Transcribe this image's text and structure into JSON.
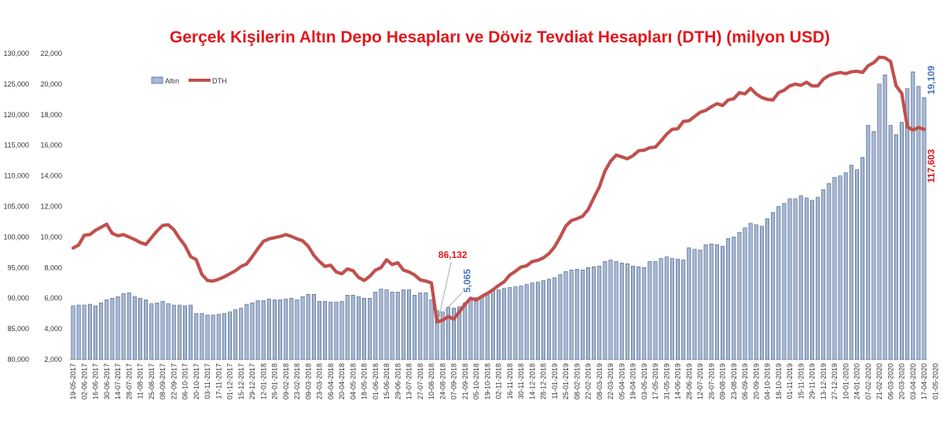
{
  "chart_data": {
    "type": "bar",
    "title": "Gerçek Kişilerin Altın Depo Hesapları ve Döviz Tevdiat Hesapları (DTH) (milyon USD)",
    "title_color": "#e3171c",
    "xlabel": "",
    "ylabel": "",
    "y_left": {
      "ylim": [
        2000,
        22000
      ],
      "ticks": [
        "2,000",
        "4,000",
        "6,000",
        "8,000",
        "10,000",
        "12,000",
        "14,000",
        "16,000",
        "18,000",
        "20,000",
        "22,000"
      ]
    },
    "y_right": {
      "ylim": [
        80000,
        130000
      ],
      "ticks": [
        "80,000",
        "85,000",
        "90,000",
        "95,000",
        "100,000",
        "105,000",
        "110,000",
        "115,000",
        "120,000",
        "125,000",
        "130,000"
      ]
    },
    "grid": false,
    "legend_position": "top-left",
    "x_labels": [
      "19-05-2017",
      "02-06-2017",
      "16-06-2017",
      "30-06-2017",
      "14-07-2017",
      "28-07-2017",
      "11-08-2017",
      "25-08-2017",
      "08-09-2017",
      "22-09-2017",
      "06-10-2017",
      "20-10-2017",
      "03-11-2017",
      "17-11-2017",
      "01-12-2017",
      "15-12-2017",
      "29-12-2017",
      "12-01-2018",
      "26-01-2018",
      "09-02-2018",
      "23-02-2018",
      "09-03-2018",
      "23-03-2018",
      "06-04-2018",
      "20-04-2018",
      "04-05-2018",
      "18-05-2018",
      "01-06-2018",
      "15-06-2018",
      "29-06-2018",
      "13-07-2018",
      "27-07-2018",
      "10-08-2018",
      "24-08-2018",
      "07-09-2018",
      "21-09-2018",
      "05-10-2018",
      "19-10-2018",
      "02-11-2018",
      "16-11-2018",
      "30-11-2018",
      "14-12-2018",
      "28-12-2018",
      "11-01-2019",
      "25-01-2019",
      "08-02-2019",
      "22-02-2019",
      "08-03-2019",
      "22-03-2019",
      "05-04-2019",
      "19-04-2019",
      "03-05-2019",
      "17-05-2019",
      "31-05-2019",
      "14-06-2019",
      "28-06-2019",
      "12-07-2019",
      "26-07-2019",
      "09-08-2019",
      "23-08-2019",
      "06-09-2019",
      "20-09-2019",
      "04-10-2019",
      "18-10-2019",
      "01-11-2019",
      "15-11-2019",
      "29-11-2019",
      "13-12-2019",
      "27-12-2019",
      "10-01-2020",
      "24-01-2020",
      "07-02-2020",
      "21-02-2020",
      "06-03-2020",
      "20-03-2020",
      "03-04-2020",
      "17-04-2020",
      "01-05-2020"
    ],
    "series": [
      {
        "name": "Altın",
        "type": "bar",
        "axis": "left",
        "color": "#a5b9d6",
        "edge_color": "#2f4266",
        "values": [
          5500,
          5550,
          5550,
          5600,
          5500,
          5700,
          5900,
          6000,
          6100,
          6300,
          6350,
          6100,
          6000,
          5900,
          5650,
          5700,
          5800,
          5650,
          5550,
          5550,
          5500,
          5550,
          5000,
          5000,
          4900,
          4900,
          4950,
          5000,
          5100,
          5250,
          5350,
          5600,
          5700,
          5850,
          5850,
          5950,
          5900,
          5900,
          5950,
          6000,
          5900,
          6100,
          6250,
          6250,
          5800,
          5800,
          5750,
          5750,
          5800,
          6200,
          6200,
          6100,
          6000,
          6000,
          6400,
          6600,
          6550,
          6400,
          6400,
          6550,
          6550,
          6200,
          6350,
          6350,
          5900,
          5200,
          5100,
          5400,
          5350,
          5450,
          5700,
          5900,
          6050,
          6100,
          6300,
          6500,
          6550,
          6650,
          6700,
          6750,
          6800,
          6900,
          7000,
          7050,
          7150,
          7250,
          7350,
          7550,
          7750,
          7850,
          7900,
          7850,
          8000,
          8050,
          8100,
          8400,
          8500,
          8400,
          8300,
          8250,
          8100,
          8050,
          8000,
          8400,
          8400,
          8600,
          8700,
          8600,
          8550,
          8500,
          9300,
          9200,
          9150,
          9500,
          9550,
          9500,
          9400,
          9900,
          10000,
          10300,
          10600,
          10900,
          10800,
          10700,
          11200,
          11600,
          12000,
          12200,
          12500,
          12500,
          12700,
          12550,
          12400,
          12600,
          13100,
          13500,
          13900,
          14000,
          14200,
          14700,
          14400,
          15200,
          17300,
          16900,
          20000,
          20600,
          17300,
          16700,
          17500,
          19700,
          20800,
          19850,
          19109
        ]
      },
      {
        "name": "DTH",
        "type": "line",
        "axis": "right",
        "color": "#c0504d",
        "values": [
          98200,
          98700,
          100300,
          100400,
          101100,
          101600,
          102100,
          100600,
          100200,
          100400,
          100000,
          99600,
          99100,
          98800,
          99900,
          101000,
          101900,
          102000,
          101200,
          99800,
          98600,
          96800,
          96300,
          93900,
          92900,
          92800,
          93100,
          93500,
          94000,
          94500,
          95200,
          95600,
          96800,
          98100,
          99300,
          99700,
          99900,
          100100,
          100400,
          100100,
          99700,
          99400,
          98500,
          97000,
          96000,
          95200,
          95400,
          94300,
          94000,
          94800,
          94500,
          93400,
          92900,
          93600,
          94600,
          95000,
          96300,
          95500,
          95800,
          94600,
          94300,
          93800,
          93000,
          92800,
          92500,
          86132,
          86400,
          87000,
          86600,
          87800,
          89000,
          90000,
          89700,
          90300,
          90800,
          91400,
          92100,
          92700,
          93800,
          94400,
          95100,
          95300,
          96000,
          96200,
          96600,
          97300,
          98400,
          100000,
          101800,
          102700,
          103000,
          103400,
          104500,
          106400,
          108200,
          110800,
          112400,
          113400,
          113100,
          112800,
          113300,
          114100,
          114200,
          114600,
          114700,
          115700,
          116800,
          117600,
          117700,
          118900,
          119000,
          119700,
          120400,
          120700,
          121300,
          121800,
          121500,
          122400,
          122600,
          123600,
          123400,
          124300,
          123400,
          122800,
          122500,
          122400,
          123600,
          124000,
          124700,
          125000,
          124800,
          125300,
          124700,
          124700,
          125800,
          126400,
          126700,
          126900,
          126700,
          127000,
          127100,
          126900,
          128000,
          128500,
          129400,
          129300,
          128700,
          124700,
          123500,
          118000,
          117500,
          117900,
          117603
        ]
      }
    ],
    "annotations": [
      {
        "text": "86,132",
        "color": "#e3171c"
      },
      {
        "text": "5,065",
        "color": "#4a76b8"
      },
      {
        "text": "19,109",
        "color": "#4a76b8"
      },
      {
        "text": "117,603",
        "color": "#e3171c"
      }
    ],
    "legend": [
      {
        "label": "Altın"
      },
      {
        "label": "DTH"
      }
    ]
  }
}
